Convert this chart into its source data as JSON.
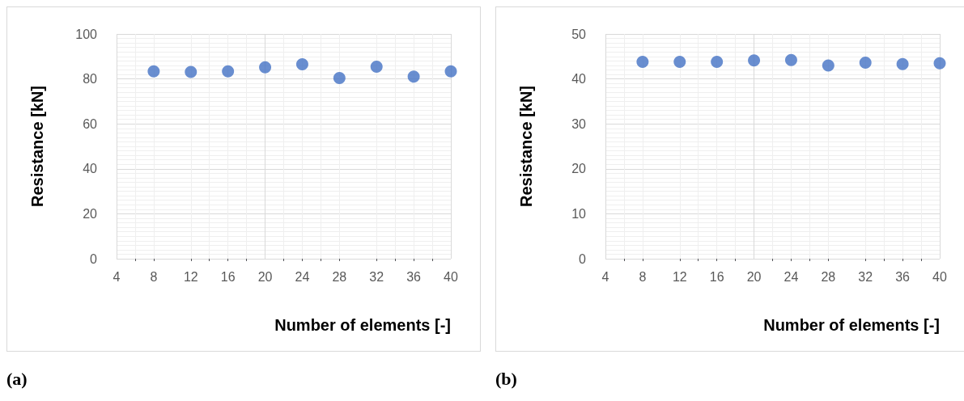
{
  "chart_data": [
    {
      "type": "scatter",
      "x": [
        8,
        12,
        16,
        20,
        24,
        28,
        32,
        36,
        40
      ],
      "values": [
        83.4,
        83.1,
        83.4,
        85.2,
        86.5,
        80.4,
        85.4,
        81.0,
        83.4
      ],
      "color": "#4472c4",
      "xlabel": "Number of elements [-]",
      "ylabel": "Resistance [kN]",
      "xlim": [
        4,
        40
      ],
      "xticks": [
        4,
        8,
        12,
        16,
        20,
        24,
        28,
        32,
        36,
        40
      ],
      "ylim": [
        0,
        100
      ],
      "yticks": [
        0,
        20,
        40,
        60,
        80,
        100
      ],
      "grid": true,
      "marker": "circle",
      "annotations": [
        "(a)"
      ]
    },
    {
      "type": "scatter",
      "x": [
        8,
        12,
        16,
        20,
        24,
        28,
        32,
        36,
        40
      ],
      "values": [
        43.8,
        43.8,
        43.8,
        44.1,
        44.2,
        43.0,
        43.6,
        43.3,
        43.5
      ],
      "color": "#4472c4",
      "xlabel": "Number of elements [-]",
      "ylabel": "Resistance [kN]",
      "xlim": [
        4,
        40
      ],
      "xticks": [
        4,
        8,
        12,
        16,
        20,
        24,
        28,
        32,
        36,
        40
      ],
      "ylim": [
        0,
        50
      ],
      "yticks": [
        0,
        10,
        20,
        30,
        40,
        50
      ],
      "grid": true,
      "marker": "circle",
      "annotations": [
        "(b)"
      ]
    }
  ]
}
